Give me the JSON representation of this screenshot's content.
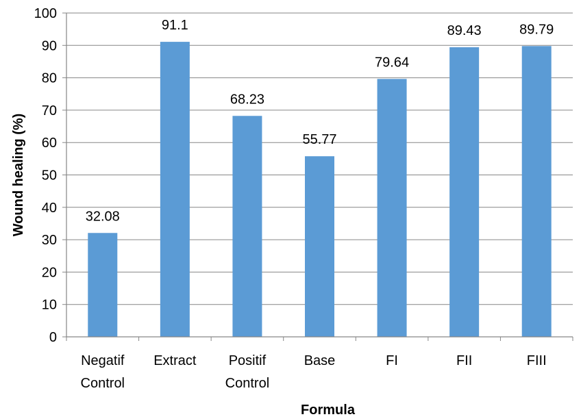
{
  "chart_data": {
    "type": "bar",
    "title": "",
    "categories": [
      [
        "Negatif",
        "Control"
      ],
      [
        "Extract"
      ],
      [
        "Positif",
        "Control"
      ],
      [
        "Base"
      ],
      [
        "FI"
      ],
      [
        "FII"
      ],
      [
        "FIII"
      ]
    ],
    "values": [
      32.08,
      91.1,
      68.23,
      55.77,
      79.64,
      89.43,
      89.79
    ],
    "data_labels": [
      "32.08",
      "91.1",
      "68.23",
      "55.77",
      "79.64",
      "89.43",
      "89.79"
    ],
    "xlabel": "Formula",
    "ylabel": "Wound healing (%)",
    "ylim": [
      0,
      100
    ],
    "yticks": [
      0,
      10,
      20,
      30,
      40,
      50,
      60,
      70,
      80,
      90,
      100
    ],
    "grid": "horizontal",
    "legend": "none",
    "bar_color": "#5B9BD5",
    "grid_color": "#868686"
  }
}
